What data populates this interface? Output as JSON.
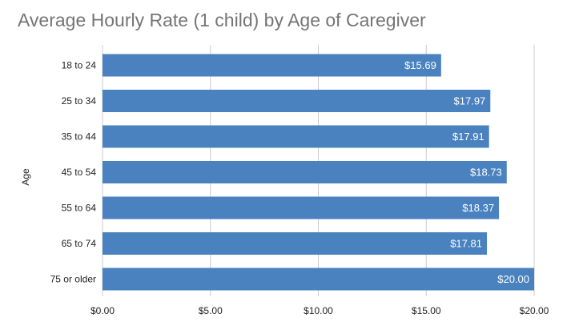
{
  "chart_data": {
    "type": "bar",
    "orientation": "horizontal",
    "title": "Average Hourly Rate (1 child) by Age of Caregiver",
    "xlabel": "",
    "ylabel": "Age",
    "categories": [
      "18 to 24",
      "25 to 34",
      "35 to 44",
      "45 to 54",
      "55 to 64",
      "65 to 74",
      "75 or older"
    ],
    "values": [
      15.69,
      17.97,
      17.91,
      18.73,
      18.37,
      17.81,
      20.0
    ],
    "data_labels": [
      "$15.69",
      "$17.97",
      "$17.91",
      "$18.73",
      "$18.37",
      "$17.81",
      "$20.00"
    ],
    "xlim": [
      0,
      20
    ],
    "x_ticks": [
      0,
      5,
      10,
      15,
      20
    ],
    "x_tick_labels": [
      "$0.00",
      "$5.00",
      "$10.00",
      "$15.00",
      "$20.00"
    ],
    "grid": "vertical",
    "legend": "none",
    "bar_color": "#4a81bf",
    "label_color": "#ffffff",
    "gridline_color": "#cccccc",
    "title_color": "#757575"
  }
}
